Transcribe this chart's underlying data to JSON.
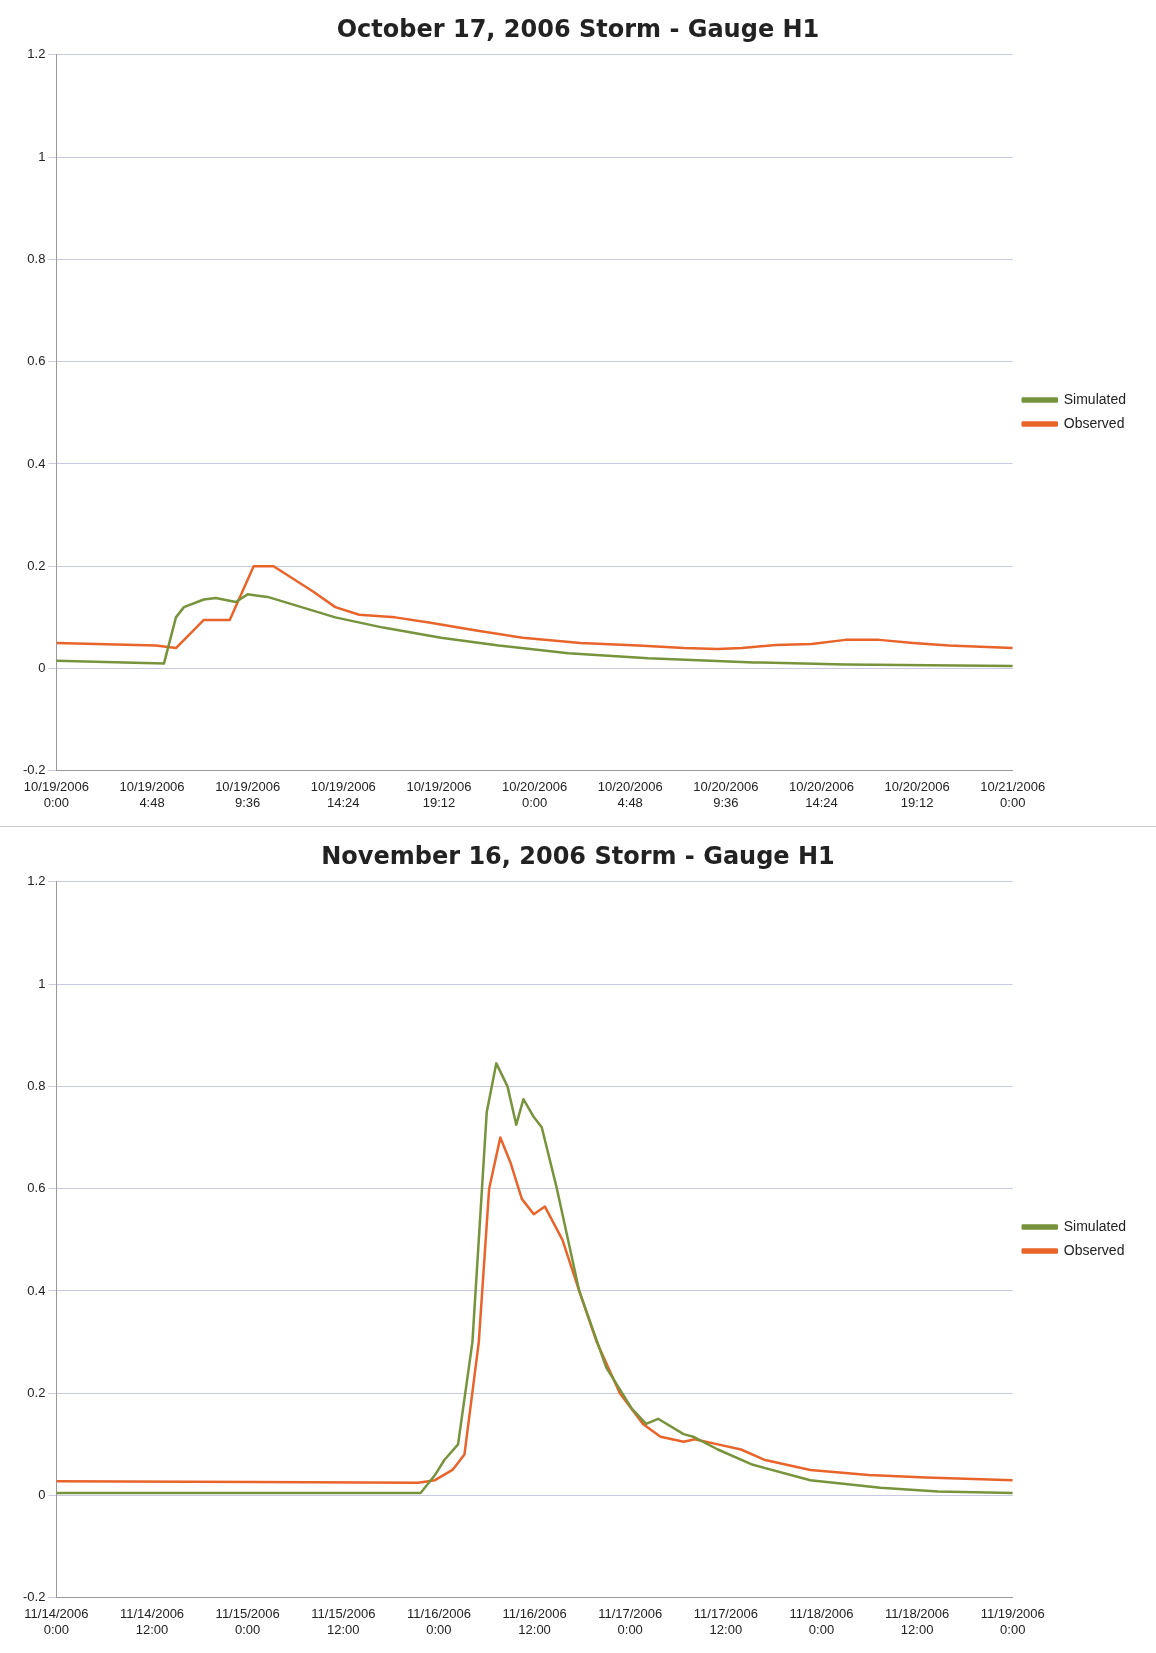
{
  "chart_data": [
    {
      "type": "line",
      "title": "October 17, 2006 Storm - Gauge H1",
      "xlim": [
        "2006-10-19T00:00",
        "2006-10-21T00:00"
      ],
      "xticks": [
        {
          "value": "2006-10-19T00:00",
          "label": "10/19/2006 0:00"
        },
        {
          "value": "2006-10-19T04:48",
          "label": "10/19/2006 4:48"
        },
        {
          "value": "2006-10-19T09:36",
          "label": "10/19/2006 9:36"
        },
        {
          "value": "2006-10-19T14:24",
          "label": "10/19/2006 14:24"
        },
        {
          "value": "2006-10-19T19:12",
          "label": "10/19/2006 19:12"
        },
        {
          "value": "2006-10-20T00:00",
          "label": "10/20/2006 0:00"
        },
        {
          "value": "2006-10-20T04:48",
          "label": "10/20/2006 4:48"
        },
        {
          "value": "2006-10-20T09:36",
          "label": "10/20/2006 9:36"
        },
        {
          "value": "2006-10-20T14:24",
          "label": "10/20/2006 14:24"
        },
        {
          "value": "2006-10-20T19:12",
          "label": "10/20/2006 19:12"
        },
        {
          "value": "2006-10-21T00:00",
          "label": "10/21/2006 0:00"
        }
      ],
      "ylim": [
        -0.2,
        1.2
      ],
      "yticks": [
        -0.2,
        0,
        0.2,
        0.4,
        0.6,
        0.8,
        1,
        1.2
      ],
      "grid": "y",
      "legend": "right",
      "marker": "none",
      "line_style": "solid",
      "series": [
        {
          "name": "Simulated",
          "color": "#77933c",
          "x": [
            "2006-10-19T00:00",
            "2006-10-19T05:24",
            "2006-10-19T06:00",
            "2006-10-19T06:24",
            "2006-10-19T07:24",
            "2006-10-19T08:00",
            "2006-10-19T09:00",
            "2006-10-19T09:36",
            "2006-10-19T10:36",
            "2006-10-19T12:18",
            "2006-10-19T14:00",
            "2006-10-19T16:24",
            "2006-10-19T19:18",
            "2006-10-19T22:12",
            "2006-10-20T01:42",
            "2006-10-20T05:42",
            "2006-10-20T11:00",
            "2006-10-20T15:36",
            "2006-10-21T00:00"
          ],
          "values": [
            0.015,
            0.01,
            0.1,
            0.12,
            0.135,
            0.138,
            0.13,
            0.145,
            0.14,
            0.12,
            0.1,
            0.08,
            0.06,
            0.045,
            0.03,
            0.02,
            0.012,
            0.008,
            0.005
          ]
        },
        {
          "name": "Observed",
          "color": "#e8642a",
          "x": [
            "2006-10-19T00:00",
            "2006-10-19T05:00",
            "2006-10-19T06:00",
            "2006-10-19T07:24",
            "2006-10-19T08:42",
            "2006-10-19T09:54",
            "2006-10-19T10:54",
            "2006-10-19T12:54",
            "2006-10-19T14:00",
            "2006-10-19T15:12",
            "2006-10-19T17:00",
            "2006-10-19T18:42",
            "2006-10-19T21:00",
            "2006-10-19T23:24",
            "2006-10-20T02:18",
            "2006-10-20T05:12",
            "2006-10-20T07:30",
            "2006-10-20T09:12",
            "2006-10-20T10:24",
            "2006-10-20T12:06",
            "2006-10-20T13:54",
            "2006-10-20T15:36",
            "2006-10-20T17:18",
            "2006-10-20T19:00",
            "2006-10-20T20:48",
            "2006-10-21T00:00"
          ],
          "values": [
            0.05,
            0.045,
            0.04,
            0.095,
            0.095,
            0.2,
            0.2,
            0.15,
            0.12,
            0.105,
            0.1,
            0.09,
            0.075,
            0.06,
            0.05,
            0.045,
            0.04,
            0.038,
            0.04,
            0.046,
            0.048,
            0.056,
            0.056,
            0.05,
            0.045,
            0.04
          ]
        }
      ]
    },
    {
      "type": "line",
      "title": "November 16, 2006 Storm - Gauge H1",
      "xlim": [
        "2006-11-14T00:00",
        "2006-11-19T00:00"
      ],
      "xticks": [
        {
          "value": "2006-11-14T00:00",
          "label": "11/14/2006 0:00"
        },
        {
          "value": "2006-11-14T12:00",
          "label": "11/14/2006 12:00"
        },
        {
          "value": "2006-11-15T00:00",
          "label": "11/15/2006 0:00"
        },
        {
          "value": "2006-11-15T12:00",
          "label": "11/15/2006 12:00"
        },
        {
          "value": "2006-11-16T00:00",
          "label": "11/16/2006 0:00"
        },
        {
          "value": "2006-11-16T12:00",
          "label": "11/16/2006 12:00"
        },
        {
          "value": "2006-11-17T00:00",
          "label": "11/17/2006 0:00"
        },
        {
          "value": "2006-11-17T12:00",
          "label": "11/17/2006 12:00"
        },
        {
          "value": "2006-11-18T00:00",
          "label": "11/18/2006 0:00"
        },
        {
          "value": "2006-11-18T12:00",
          "label": "11/18/2006 12:00"
        },
        {
          "value": "2006-11-19T00:00",
          "label": "11/19/2006 0:00"
        }
      ],
      "ylim": [
        -0.2,
        1.2
      ],
      "yticks": [
        -0.2,
        0,
        0.2,
        0.4,
        0.6,
        0.8,
        1,
        1.2
      ],
      "grid": "y",
      "legend": "right",
      "marker": "none",
      "line_style": "solid",
      "series": [
        {
          "name": "Simulated",
          "color": "#77933c",
          "x": [
            "2006-11-14T00:00",
            "2006-11-15T21:42",
            "2006-11-15T23:30",
            "2006-11-16T00:42",
            "2006-11-16T02:24",
            "2006-11-16T04:12",
            "2006-11-16T06:00",
            "2006-11-16T07:12",
            "2006-11-16T08:36",
            "2006-11-16T09:42",
            "2006-11-16T10:36",
            "2006-11-16T11:54",
            "2006-11-16T12:54",
            "2006-11-16T14:48",
            "2006-11-16T17:36",
            "2006-11-16T21:00",
            "2006-11-17T00:12",
            "2006-11-17T02:00",
            "2006-11-17T03:30",
            "2006-11-17T06:42",
            "2006-11-17T07:54",
            "2006-11-17T11:00",
            "2006-11-17T15:24",
            "2006-11-17T22:36",
            "2006-11-18T07:24",
            "2006-11-18T14:36",
            "2006-11-19T00:00"
          ],
          "values": [
            0.005,
            0.005,
            0.04,
            0.07,
            0.1,
            0.3,
            0.75,
            0.845,
            0.8,
            0.725,
            0.775,
            0.74,
            0.72,
            0.6,
            0.4,
            0.25,
            0.17,
            0.14,
            0.15,
            0.12,
            0.115,
            0.09,
            0.06,
            0.03,
            0.015,
            0.008,
            0.005
          ]
        },
        {
          "name": "Observed",
          "color": "#e8642a",
          "x": [
            "2006-11-14T00:00",
            "2006-11-15T21:24",
            "2006-11-15T23:30",
            "2006-11-16T01:42",
            "2006-11-16T03:12",
            "2006-11-16T05:00",
            "2006-11-16T06:18",
            "2006-11-16T07:42",
            "2006-11-16T09:00",
            "2006-11-16T10:24",
            "2006-11-16T11:54",
            "2006-11-16T13:18",
            "2006-11-16T15:30",
            "2006-11-16T17:36",
            "2006-11-16T19:48",
            "2006-11-16T22:42",
            "2006-11-17T01:36",
            "2006-11-17T03:48",
            "2006-11-17T06:42",
            "2006-11-17T08:06",
            "2006-11-17T11:00",
            "2006-11-17T13:54",
            "2006-11-17T16:48",
            "2006-11-17T22:36",
            "2006-11-18T05:54",
            "2006-11-18T13:06",
            "2006-11-19T00:00"
          ],
          "values": [
            0.028,
            0.025,
            0.03,
            0.05,
            0.08,
            0.3,
            0.6,
            0.7,
            0.65,
            0.58,
            0.55,
            0.565,
            0.5,
            0.4,
            0.3,
            0.2,
            0.14,
            0.115,
            0.105,
            0.11,
            0.1,
            0.09,
            0.07,
            0.05,
            0.04,
            0.035,
            0.03
          ]
        }
      ]
    }
  ]
}
